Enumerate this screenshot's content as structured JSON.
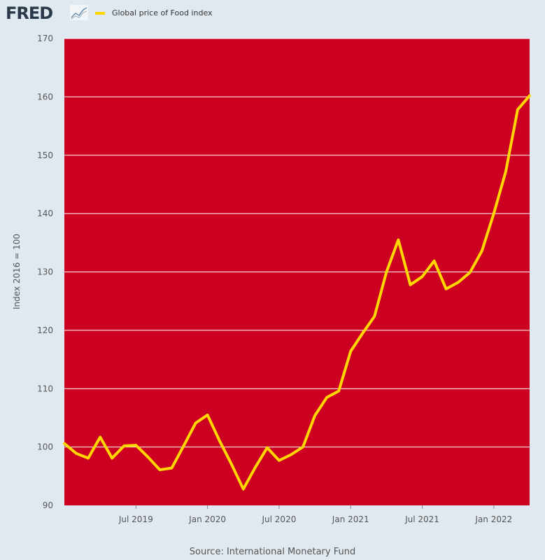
{
  "brand": {
    "logo_text": "FRED"
  },
  "legend": {
    "label": "Global price of Food index",
    "swatch_color": "#ffd700"
  },
  "source": "Source: International Monetary Fund",
  "colors": {
    "plot_background": "#cc0020",
    "line": "#ffd700",
    "gridline": "#ffffff"
  },
  "chart_data": {
    "type": "line",
    "ylabel": "Index 2016 = 100",
    "ylim": [
      90,
      170
    ],
    "yticks": [
      90,
      100,
      110,
      120,
      130,
      140,
      150,
      160,
      170
    ],
    "xlim": [
      "2019-01",
      "2022-04"
    ],
    "xticks": [
      {
        "label": "Jul 2019",
        "date": "2019-07"
      },
      {
        "label": "Jan 2020",
        "date": "2020-01"
      },
      {
        "label": "Jul 2020",
        "date": "2020-07"
      },
      {
        "label": "Jan 2021",
        "date": "2021-01"
      },
      {
        "label": "Jul 2021",
        "date": "2021-07"
      },
      {
        "label": "Jan 2022",
        "date": "2022-01"
      }
    ],
    "grid": true,
    "series": [
      {
        "name": "Global price of Food index",
        "x": [
          "2019-01",
          "2019-02",
          "2019-03",
          "2019-04",
          "2019-05",
          "2019-06",
          "2019-07",
          "2019-08",
          "2019-09",
          "2019-10",
          "2019-11",
          "2019-12",
          "2020-01",
          "2020-02",
          "2020-03",
          "2020-04",
          "2020-05",
          "2020-06",
          "2020-07",
          "2020-08",
          "2020-09",
          "2020-10",
          "2020-11",
          "2020-12",
          "2021-01",
          "2021-02",
          "2021-03",
          "2021-04",
          "2021-05",
          "2021-06",
          "2021-07",
          "2021-08",
          "2021-09",
          "2021-10",
          "2021-11",
          "2021-12",
          "2022-01",
          "2022-02",
          "2022-03",
          "2022-04"
        ],
        "y": [
          100.6,
          98.9,
          98.1,
          101.7,
          98.1,
          100.2,
          100.3,
          98.3,
          96.1,
          96.4,
          100.2,
          104.1,
          105.5,
          101.1,
          97.1,
          92.8,
          96.5,
          99.9,
          97.7,
          98.7,
          100.0,
          105.4,
          108.5,
          109.6,
          116.4,
          119.5,
          122.4,
          130.0,
          135.5,
          127.8,
          129.2,
          131.9,
          127.1,
          128.2,
          129.9,
          133.6,
          140.0,
          147.2,
          157.8,
          160.2
        ]
      }
    ]
  }
}
